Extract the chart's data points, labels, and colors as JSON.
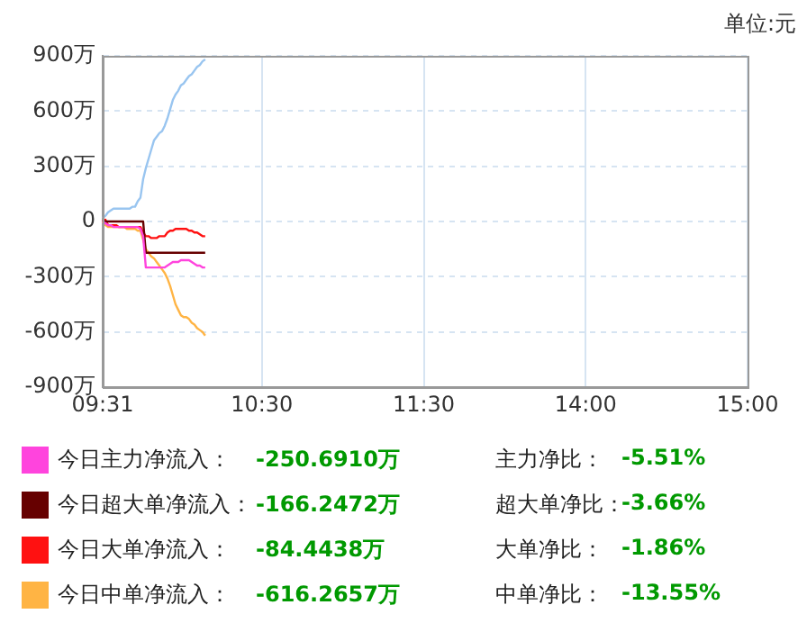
{
  "chart_data": {
    "type": "line",
    "ylabel": "单位:元",
    "categories": [
      "09:31",
      null,
      null,
      null,
      null,
      null,
      null,
      null,
      null,
      null,
      null,
      null,
      null,
      null,
      null,
      null,
      null,
      null,
      null,
      null,
      null,
      null,
      null,
      null,
      null,
      null,
      null,
      null,
      null,
      null,
      null,
      null,
      null,
      null,
      null,
      null,
      null,
      null,
      null,
      null,
      null,
      null,
      null,
      null,
      null,
      null,
      null,
      null,
      null,
      null,
      null,
      null,
      null,
      null,
      null,
      null,
      null,
      null,
      null,
      "10:30",
      null,
      null,
      null,
      null,
      null,
      null,
      null,
      null,
      null,
      null,
      null,
      null,
      null,
      null,
      null,
      null,
      null,
      null,
      null,
      null,
      null,
      null,
      null,
      null,
      null,
      null,
      null,
      null,
      null,
      null,
      null,
      null,
      null,
      null,
      null,
      null,
      null,
      null,
      null,
      null,
      null,
      null,
      null,
      null,
      null,
      null,
      null,
      null,
      null,
      null,
      null,
      null,
      null,
      null,
      null,
      null,
      null,
      null,
      null,
      "11:30",
      null,
      null,
      null,
      null,
      null,
      null,
      null,
      null,
      null,
      null,
      null,
      null,
      null,
      null,
      null,
      null,
      null,
      null,
      null,
      null,
      null,
      null,
      null,
      null,
      null,
      null,
      null,
      null,
      null,
      null,
      null,
      null,
      null,
      null,
      null,
      null,
      null,
      null,
      null,
      null,
      null,
      null,
      null,
      null,
      null,
      null,
      null,
      null,
      null,
      null,
      null,
      null,
      null,
      null,
      null,
      null,
      null,
      null,
      null,
      "14:00",
      null,
      null,
      null,
      null,
      null,
      null,
      null,
      null,
      null,
      null,
      null,
      null,
      null,
      null,
      null,
      null,
      null,
      null,
      null,
      null,
      null,
      null,
      null,
      null,
      null,
      null,
      null,
      null,
      null,
      null,
      null,
      null,
      null,
      null,
      null,
      null,
      null,
      null,
      null,
      null,
      null,
      null,
      null,
      null,
      null,
      null,
      null,
      null,
      null,
      null,
      null,
      null,
      null,
      null,
      null,
      null,
      null,
      null,
      null,
      "15:00"
    ],
    "ylim": [
      -900,
      900
    ],
    "yticks": [
      {
        "value": -900,
        "label": "-900万"
      },
      {
        "value": -600,
        "label": "-600万"
      },
      {
        "value": -300,
        "label": "-300万"
      },
      0,
      {
        "value": 300,
        "label": "300万"
      },
      {
        "value": 600,
        "label": "600万"
      },
      {
        "value": 900,
        "label": "900万"
      }
    ],
    "grid": true,
    "legend": "bottom",
    "marker": "none",
    "line_style": "solid",
    "series": [
      {
        "color": "#99c5f0",
        "values": [
          20,
          30,
          50,
          60,
          70,
          70,
          70,
          70,
          70,
          70,
          70,
          80,
          80,
          110,
          130,
          230,
          290,
          340,
          390,
          440,
          460,
          480,
          490,
          520,
          560,
          610,
          660,
          690,
          710,
          740,
          750,
          770,
          790,
          800,
          820,
          840,
          850,
          870,
          880,
          null,
          null,
          null,
          null,
          null,
          null,
          null,
          null,
          null,
          null,
          null,
          null,
          null,
          null,
          null,
          null,
          null,
          null,
          null,
          null,
          null,
          null,
          null,
          null,
          null,
          null,
          null,
          null,
          null,
          null,
          null,
          null,
          null,
          null,
          null,
          null,
          null,
          null,
          null,
          null,
          null,
          null,
          null,
          null,
          null,
          null,
          null,
          null,
          null,
          null,
          null,
          null,
          null,
          null,
          null,
          null,
          null,
          null,
          null,
          null,
          null,
          null,
          null,
          null,
          null,
          null,
          null,
          null,
          null,
          null,
          null,
          null,
          null,
          null,
          null,
          null,
          null,
          null,
          null,
          null,
          null,
          null,
          null,
          null,
          null,
          null,
          null,
          null,
          null,
          null,
          null,
          null,
          null,
          null,
          null,
          null,
          null,
          null,
          null,
          null,
          null,
          null,
          null,
          null,
          null,
          null,
          null,
          null,
          null,
          null,
          null,
          null,
          null,
          null,
          null,
          null,
          null,
          null,
          null,
          null,
          null,
          null,
          null,
          null,
          null,
          null,
          null,
          null,
          null,
          null,
          null,
          null,
          null,
          null,
          null,
          null,
          null,
          null,
          null,
          null,
          null,
          null,
          null,
          null,
          null,
          null,
          null,
          null,
          null,
          null,
          null,
          null,
          null,
          null,
          null,
          null,
          null,
          null,
          null,
          null,
          null,
          null,
          null,
          null,
          null,
          null,
          null,
          null,
          null,
          null,
          null,
          null,
          null,
          null,
          null,
          null,
          null,
          null,
          null,
          null,
          null,
          null,
          null,
          null,
          null,
          null,
          null,
          null,
          null,
          null,
          null,
          null,
          null,
          null,
          null,
          null,
          null,
          null,
          null,
          null,
          null
        ]
      },
      {
        "name": "今日主力净流入：",
        "color": "#ff44dd",
        "values": [
          0,
          -10,
          -20,
          -20,
          -30,
          -30,
          -30,
          -30,
          -30,
          -30,
          -30,
          -30,
          -30,
          -30,
          -40,
          -80,
          -250,
          -250,
          -250,
          -250,
          -250,
          -250,
          -250,
          -250,
          -240,
          -230,
          -220,
          -220,
          -220,
          -210,
          -210,
          -210,
          -210,
          -220,
          -230,
          -240,
          -240,
          -250,
          -250,
          null,
          null,
          null,
          null,
          null,
          null,
          null,
          null,
          null,
          null,
          null,
          null,
          null,
          null,
          null,
          null,
          null,
          null,
          null,
          null,
          null,
          null,
          null,
          null,
          null,
          null,
          null,
          null,
          null,
          null,
          null,
          null,
          null,
          null,
          null,
          null,
          null,
          null,
          null,
          null,
          null,
          null,
          null,
          null,
          null,
          null,
          null,
          null,
          null,
          null,
          null,
          null,
          null,
          null,
          null,
          null,
          null,
          null,
          null,
          null,
          null,
          null,
          null,
          null,
          null,
          null,
          null,
          null,
          null,
          null,
          null,
          null,
          null,
          null,
          null,
          null,
          null,
          null,
          null,
          null,
          null,
          null,
          null,
          null,
          null,
          null,
          null,
          null,
          null,
          null,
          null,
          null,
          null,
          null,
          null,
          null,
          null,
          null,
          null,
          null,
          null,
          null,
          null,
          null,
          null,
          null,
          null,
          null,
          null,
          null,
          null,
          null,
          null,
          null,
          null,
          null,
          null,
          null,
          null,
          null,
          null,
          null,
          null,
          null,
          null,
          null,
          null,
          null,
          null,
          null,
          null,
          null,
          null,
          null,
          null,
          null,
          null,
          null,
          null,
          null,
          null,
          null,
          null,
          null,
          null,
          null,
          null,
          null,
          null,
          null,
          null,
          null,
          null,
          null,
          null,
          null,
          null,
          null,
          null,
          null,
          null,
          null,
          null,
          null,
          null,
          null,
          null,
          null,
          null,
          null,
          null,
          null,
          null,
          null,
          null,
          null,
          null,
          null,
          null,
          null,
          null,
          null,
          null,
          null,
          null,
          null,
          null,
          null,
          null,
          null,
          null,
          null,
          null,
          null,
          null,
          null,
          null,
          null,
          null,
          null,
          null
        ]
      },
      {
        "name": "今日超大单净流入：",
        "color": "#660000",
        "values": [
          0,
          0,
          0,
          0,
          0,
          0,
          0,
          0,
          0,
          0,
          0,
          0,
          0,
          0,
          0,
          0,
          -170,
          -170,
          -170,
          -170,
          -170,
          -170,
          -170,
          -170,
          -170,
          -170,
          -170,
          -170,
          -170,
          -170,
          -170,
          -170,
          -170,
          -170,
          -170,
          -170,
          -170,
          -170,
          -170,
          null,
          null,
          null,
          null,
          null,
          null,
          null,
          null,
          null,
          null,
          null,
          null,
          null,
          null,
          null,
          null,
          null,
          null,
          null,
          null,
          null,
          null,
          null,
          null,
          null,
          null,
          null,
          null,
          null,
          null,
          null,
          null,
          null,
          null,
          null,
          null,
          null,
          null,
          null,
          null,
          null,
          null,
          null,
          null,
          null,
          null,
          null,
          null,
          null,
          null,
          null,
          null,
          null,
          null,
          null,
          null,
          null,
          null,
          null,
          null,
          null,
          null,
          null,
          null,
          null,
          null,
          null,
          null,
          null,
          null,
          null,
          null,
          null,
          null,
          null,
          null,
          null,
          null,
          null,
          null,
          null,
          null,
          null,
          null,
          null,
          null,
          null,
          null,
          null,
          null,
          null,
          null,
          null,
          null,
          null,
          null,
          null,
          null,
          null,
          null,
          null,
          null,
          null,
          null,
          null,
          null,
          null,
          null,
          null,
          null,
          null,
          null,
          null,
          null,
          null,
          null,
          null,
          null,
          null,
          null,
          null,
          null,
          null,
          null,
          null,
          null,
          null,
          null,
          null,
          null,
          null,
          null,
          null,
          null,
          null,
          null,
          null,
          null,
          null,
          null,
          null,
          null,
          null,
          null,
          null,
          null,
          null,
          null,
          null,
          null,
          null,
          null,
          null,
          null,
          null,
          null,
          null,
          null,
          null,
          null,
          null,
          null,
          null,
          null,
          null,
          null,
          null,
          null,
          null,
          null,
          null,
          null,
          null,
          null,
          null,
          null,
          null,
          null,
          null,
          null,
          null,
          null,
          null,
          null,
          null,
          null,
          null,
          null,
          null,
          null,
          null,
          null,
          null,
          null,
          null,
          null,
          null,
          null,
          null,
          null,
          null
        ]
      },
      {
        "name": "今日大单净流入：",
        "color": "#ff1111",
        "values": [
          0,
          10,
          -20,
          -20,
          -20,
          -20,
          -30,
          -30,
          -30,
          -30,
          -30,
          -30,
          -30,
          -30,
          -30,
          -60,
          -80,
          -80,
          -90,
          -90,
          -90,
          -80,
          -80,
          -80,
          -60,
          -50,
          -50,
          -40,
          -40,
          -40,
          -40,
          -40,
          -50,
          -50,
          -60,
          -60,
          -70,
          -80,
          -80,
          null,
          null,
          null,
          null,
          null,
          null,
          null,
          null,
          null,
          null,
          null,
          null,
          null,
          null,
          null,
          null,
          null,
          null,
          null,
          null,
          null,
          null,
          null,
          null,
          null,
          null,
          null,
          null,
          null,
          null,
          null,
          null,
          null,
          null,
          null,
          null,
          null,
          null,
          null,
          null,
          null,
          null,
          null,
          null,
          null,
          null,
          null,
          null,
          null,
          null,
          null,
          null,
          null,
          null,
          null,
          null,
          null,
          null,
          null,
          null,
          null,
          null,
          null,
          null,
          null,
          null,
          null,
          null,
          null,
          null,
          null,
          null,
          null,
          null,
          null,
          null,
          null,
          null,
          null,
          null,
          null,
          null,
          null,
          null,
          null,
          null,
          null,
          null,
          null,
          null,
          null,
          null,
          null,
          null,
          null,
          null,
          null,
          null,
          null,
          null,
          null,
          null,
          null,
          null,
          null,
          null,
          null,
          null,
          null,
          null,
          null,
          null,
          null,
          null,
          null,
          null,
          null,
          null,
          null,
          null,
          null,
          null,
          null,
          null,
          null,
          null,
          null,
          null,
          null,
          null,
          null,
          null,
          null,
          null,
          null,
          null,
          null,
          null,
          null,
          null,
          null,
          null,
          null,
          null,
          null,
          null,
          null,
          null,
          null,
          null,
          null,
          null,
          null,
          null,
          null,
          null,
          null,
          null,
          null,
          null,
          null,
          null,
          null,
          null,
          null,
          null,
          null,
          null,
          null,
          null,
          null,
          null,
          null,
          null,
          null,
          null,
          null,
          null,
          null,
          null,
          null,
          null,
          null,
          null,
          null,
          null,
          null,
          null,
          null,
          null,
          null,
          null,
          null,
          null,
          null,
          null,
          null,
          null,
          null,
          null,
          null
        ]
      },
      {
        "name": "今日中单净流入：",
        "color": "#ffb444",
        "values": [
          0,
          -20,
          -30,
          -30,
          -30,
          -30,
          -30,
          -30,
          -30,
          -40,
          -40,
          -40,
          -40,
          -50,
          -50,
          -100,
          -150,
          -170,
          -190,
          -200,
          -220,
          -240,
          -260,
          -280,
          -310,
          -350,
          -400,
          -450,
          -480,
          -510,
          -520,
          -520,
          -530,
          -550,
          -560,
          -580,
          -590,
          -600,
          -620,
          null,
          null,
          null,
          null,
          null,
          null,
          null,
          null,
          null,
          null,
          null,
          null,
          null,
          null,
          null,
          null,
          null,
          null,
          null,
          null,
          null,
          null,
          null,
          null,
          null,
          null,
          null,
          null,
          null,
          null,
          null,
          null,
          null,
          null,
          null,
          null,
          null,
          null,
          null,
          null,
          null,
          null,
          null,
          null,
          null,
          null,
          null,
          null,
          null,
          null,
          null,
          null,
          null,
          null,
          null,
          null,
          null,
          null,
          null,
          null,
          null,
          null,
          null,
          null,
          null,
          null,
          null,
          null,
          null,
          null,
          null,
          null,
          null,
          null,
          null,
          null,
          null,
          null,
          null,
          null,
          null,
          null,
          null,
          null,
          null,
          null,
          null,
          null,
          null,
          null,
          null,
          null,
          null,
          null,
          null,
          null,
          null,
          null,
          null,
          null,
          null,
          null,
          null,
          null,
          null,
          null,
          null,
          null,
          null,
          null,
          null,
          null,
          null,
          null,
          null,
          null,
          null,
          null,
          null,
          null,
          null,
          null,
          null,
          null,
          null,
          null,
          null,
          null,
          null,
          null,
          null,
          null,
          null,
          null,
          null,
          null,
          null,
          null,
          null,
          null,
          null,
          null,
          null,
          null,
          null,
          null,
          null,
          null,
          null,
          null,
          null,
          null,
          null,
          null,
          null,
          null,
          null,
          null,
          null,
          null,
          null,
          null,
          null,
          null,
          null,
          null,
          null,
          null,
          null,
          null,
          null,
          null,
          null,
          null,
          null,
          null,
          null,
          null,
          null,
          null,
          null,
          null,
          null,
          null,
          null,
          null,
          null,
          null,
          null,
          null,
          null,
          null,
          null,
          null,
          null,
          null,
          null,
          null,
          null,
          null,
          null
        ]
      }
    ],
    "annotations": [
      "-250.6910万",
      "主力净比：",
      "-5.51%",
      "-166.2472万",
      "超大单净比：",
      "-3.66%",
      "-84.4438万",
      "大单净比：",
      "-1.86%",
      "-616.2657万",
      "中单净比：",
      "-13.55%"
    ]
  }
}
